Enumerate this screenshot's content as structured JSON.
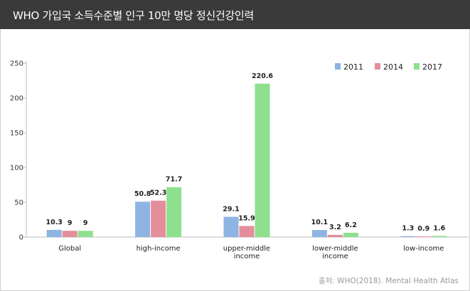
{
  "header": {
    "title": "WHO 가입국 소득수준별 인구 10만 명당 정신건강인력"
  },
  "footer": {
    "source": "출처: WHO(2018). Mental Health Atlas"
  },
  "chart_data": {
    "type": "bar",
    "categories": [
      [
        "Global"
      ],
      [
        "high-income"
      ],
      [
        "upper-middle",
        "income"
      ],
      [
        "lower-middle",
        "income"
      ],
      [
        "low-income"
      ]
    ],
    "series": [
      {
        "name": "2011",
        "color": "#8db4e2",
        "values": [
          10.3,
          50.8,
          29.1,
          10.1,
          1.3
        ],
        "labels": [
          "10.3",
          "50.8",
          "29.1",
          "10.1",
          "1.3"
        ]
      },
      {
        "name": "2014",
        "color": "#e48d9b",
        "values": [
          9,
          52.3,
          15.9,
          3.2,
          0.9
        ],
        "labels": [
          "9",
          "52.3",
          "15.9",
          "3.2",
          "0.9"
        ]
      },
      {
        "name": "2017",
        "color": "#8ee08e",
        "values": [
          9,
          71.7,
          220.6,
          6.2,
          1.6
        ],
        "labels": [
          "9",
          "71.7",
          "220.6",
          "6.2",
          "1.6"
        ]
      }
    ],
    "yticks": [
      0,
      50,
      100,
      150,
      200,
      250
    ],
    "ylim": [
      0,
      250
    ],
    "grid": false,
    "legend": "top-right"
  }
}
